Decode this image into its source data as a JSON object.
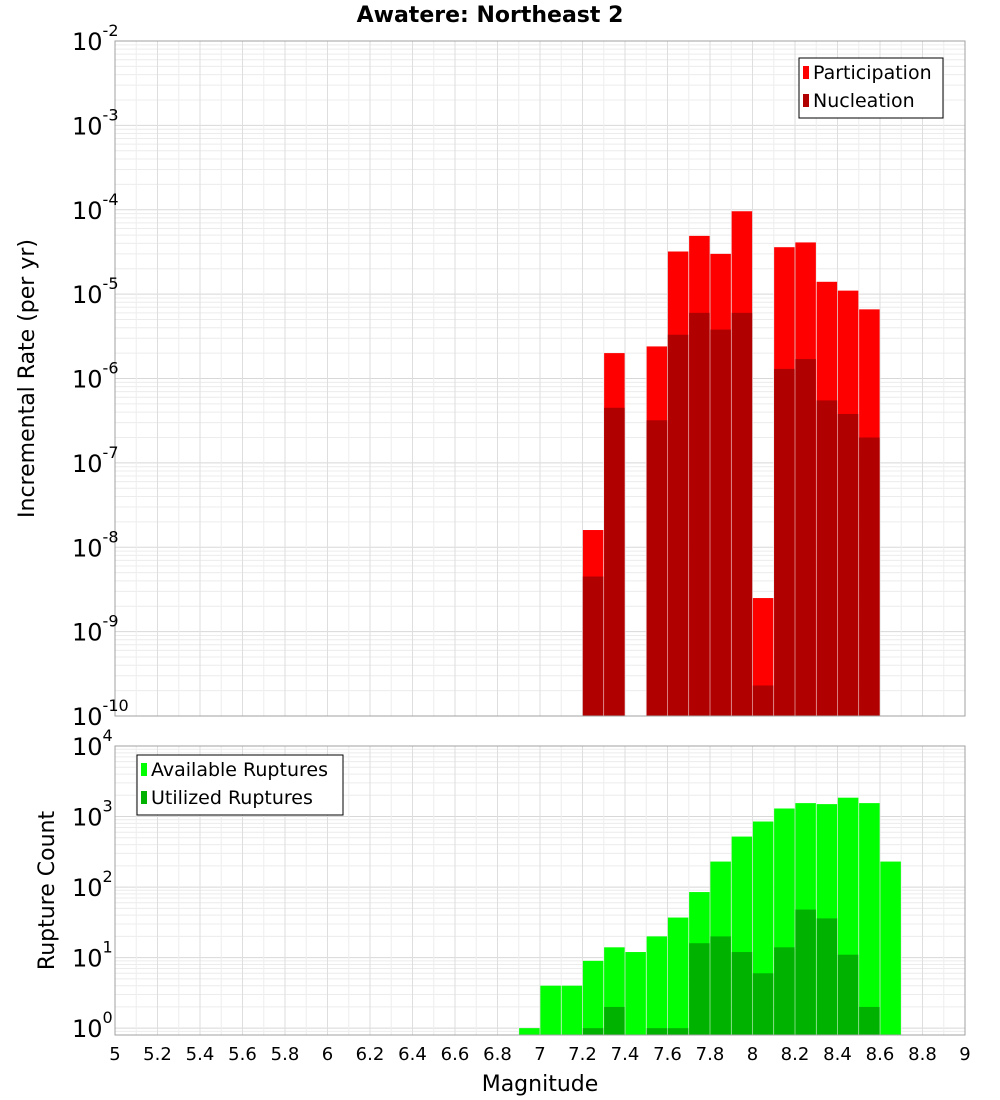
{
  "chart_data": [
    {
      "type": "bar",
      "title": "Awatere: Northeast 2",
      "xlabel": "",
      "ylabel": "Incremental Rate (per yr)",
      "yscale": "log",
      "ylim": [
        1e-10,
        0.01
      ],
      "xlim": [
        5,
        9
      ],
      "y_tick_labels": [
        {
          "base": "10",
          "exp": "-10"
        },
        {
          "base": "10",
          "exp": "-9"
        },
        {
          "base": "10",
          "exp": "-8"
        },
        {
          "base": "10",
          "exp": "-7"
        },
        {
          "base": "10",
          "exp": "-6"
        },
        {
          "base": "10",
          "exp": "-5"
        },
        {
          "base": "10",
          "exp": "-4"
        },
        {
          "base": "10",
          "exp": "-3"
        },
        {
          "base": "10",
          "exp": "-2"
        }
      ],
      "grid": true,
      "legend_position": "top-right",
      "series": [
        {
          "name": "Participation",
          "color": "#ff0000",
          "x": [
            7.25,
            7.35,
            7.55,
            7.65,
            7.75,
            7.85,
            7.95,
            8.05,
            8.15,
            8.25,
            8.35,
            8.45,
            8.55
          ],
          "values": [
            1.6e-08,
            2e-06,
            2.4e-06,
            3.2e-05,
            4.9e-05,
            3e-05,
            9.6e-05,
            2.5e-09,
            3.6e-05,
            4.1e-05,
            1.4e-05,
            1.1e-05,
            6.6e-06
          ]
        },
        {
          "name": "Nucleation",
          "color": "#b00000",
          "x": [
            7.25,
            7.35,
            7.55,
            7.65,
            7.75,
            7.85,
            7.95,
            8.05,
            8.15,
            8.25,
            8.35,
            8.45,
            8.55
          ],
          "values": [
            4.5e-09,
            4.5e-07,
            3.2e-07,
            3.3e-06,
            6e-06,
            3.8e-06,
            6e-06,
            2.3e-10,
            1.3e-06,
            1.7e-06,
            5.5e-07,
            3.8e-07,
            2e-07
          ]
        }
      ]
    },
    {
      "type": "bar",
      "title": "",
      "xlabel": "Magnitude",
      "ylabel": "Rupture Count",
      "yscale": "log",
      "ylim": [
        0.8,
        10000
      ],
      "xlim": [
        5,
        9
      ],
      "x_ticks": [
        "5",
        "5.2",
        "5.4",
        "5.6",
        "5.8",
        "6",
        "6.2",
        "6.4",
        "6.6",
        "6.8",
        "7",
        "7.2",
        "7.4",
        "7.6",
        "7.8",
        "8",
        "8.2",
        "8.4",
        "8.6",
        "8.8",
        "9"
      ],
      "y_tick_labels": [
        {
          "base": "10",
          "exp": "0"
        },
        {
          "base": "10",
          "exp": "1"
        },
        {
          "base": "10",
          "exp": "2"
        },
        {
          "base": "10",
          "exp": "3"
        },
        {
          "base": "10",
          "exp": "4"
        }
      ],
      "grid": true,
      "legend_position": "top-left",
      "series": [
        {
          "name": "Available Ruptures",
          "color": "#00ff00",
          "x": [
            6.95,
            7.05,
            7.15,
            7.25,
            7.35,
            7.45,
            7.55,
            7.65,
            7.75,
            7.85,
            7.95,
            8.05,
            8.15,
            8.25,
            8.35,
            8.45,
            8.55,
            8.65
          ],
          "values": [
            1,
            4,
            4,
            9,
            14,
            12,
            20,
            37,
            85,
            230,
            520,
            850,
            1300,
            1550,
            1500,
            1850,
            1550,
            230
          ]
        },
        {
          "name": "Utilized Ruptures",
          "color": "#00b200",
          "x": [
            7.25,
            7.35,
            7.55,
            7.65,
            7.75,
            7.85,
            7.95,
            8.05,
            8.15,
            8.25,
            8.35,
            8.45,
            8.55
          ],
          "values": [
            1,
            2,
            1,
            1,
            16,
            20,
            12,
            6,
            14,
            48,
            36,
            11,
            2
          ]
        }
      ]
    }
  ]
}
